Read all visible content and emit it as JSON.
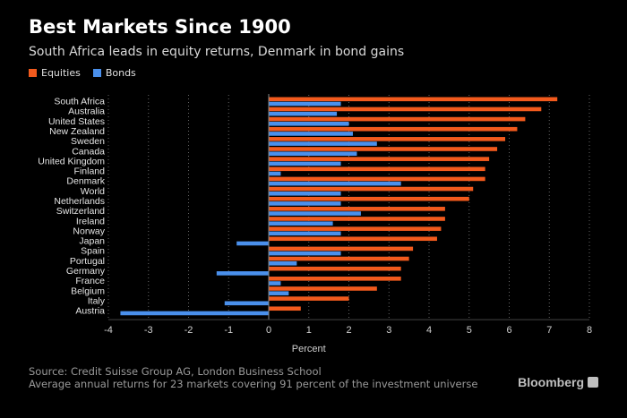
{
  "header": {
    "title": "Best Markets Since 1900",
    "subtitle": "South Africa leads in equity returns, Denmark in bond gains"
  },
  "footer": {
    "source": "Source: Credit Suisse Group AG, London Business School",
    "note": "Average annual returns for 23 markets covering 91 percent of the investment universe",
    "brand": "Bloomberg"
  },
  "colors": {
    "equities": "#f25a1d",
    "bonds": "#4a90ec",
    "background": "#000000",
    "axis": "#888888",
    "grid": "#666666"
  },
  "chart_data": {
    "type": "bar",
    "orientation": "horizontal",
    "title": "Best Markets Since 1900",
    "subtitle": "South Africa leads in equity returns, Denmark in bond gains",
    "xlabel": "Percent",
    "ylabel": "",
    "xlim": [
      -4,
      8
    ],
    "xticks": [
      -4,
      -3,
      -2,
      -1,
      0,
      1,
      2,
      3,
      4,
      5,
      6,
      7,
      8
    ],
    "grid": "vertical dotted",
    "legend_position": "top-left",
    "categories": [
      "South Africa",
      "Australia",
      "United States",
      "New Zealand",
      "Sweden",
      "Canada",
      "United Kingdom",
      "Finland",
      "Denmark",
      "World",
      "Netherlands",
      "Switzerland",
      "Ireland",
      "Norway",
      "Japan",
      "Spain",
      "Portugal",
      "Germany",
      "France",
      "Belgium",
      "Italy",
      "Austria"
    ],
    "series": [
      {
        "name": "Equities",
        "values": [
          7.2,
          6.8,
          6.4,
          6.2,
          5.9,
          5.7,
          5.5,
          5.4,
          5.4,
          5.1,
          5.0,
          4.4,
          4.4,
          4.3,
          4.2,
          3.6,
          3.5,
          3.3,
          3.3,
          2.7,
          2.0,
          0.8
        ]
      },
      {
        "name": "Bonds",
        "values": [
          1.8,
          1.7,
          2.0,
          2.1,
          2.7,
          2.2,
          1.8,
          0.3,
          3.3,
          1.8,
          1.8,
          2.3,
          1.6,
          1.8,
          -0.8,
          1.8,
          0.7,
          -1.3,
          0.3,
          0.5,
          -1.1,
          -3.7
        ]
      }
    ]
  }
}
